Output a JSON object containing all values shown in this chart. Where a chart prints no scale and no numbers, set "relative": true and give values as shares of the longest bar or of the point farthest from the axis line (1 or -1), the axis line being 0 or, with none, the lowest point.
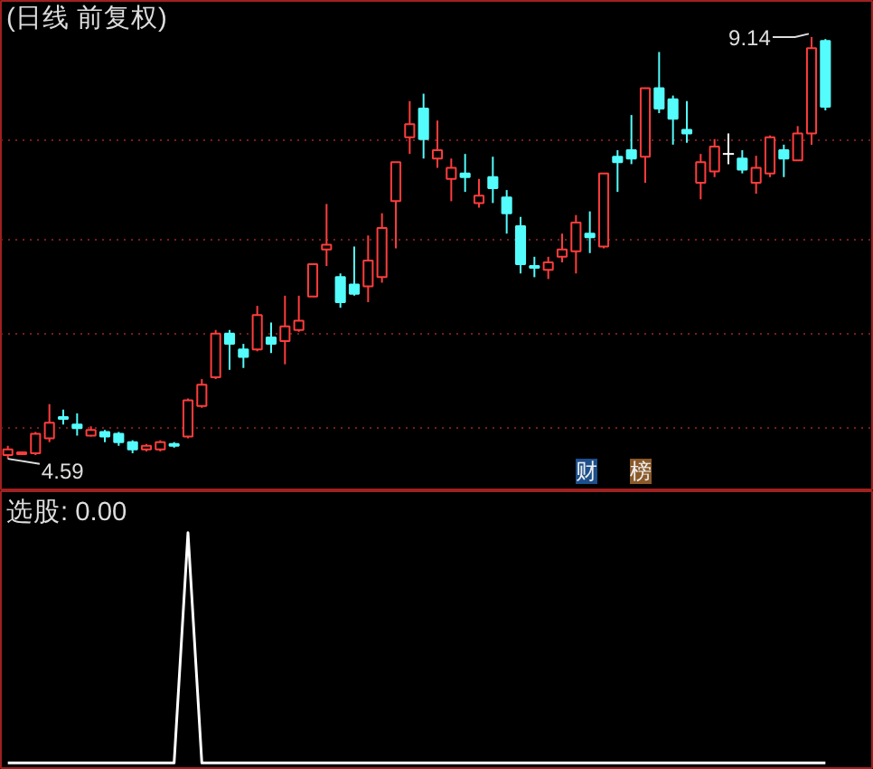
{
  "chart_data": [
    {
      "type": "candlestick",
      "title": "(日线 前复权)",
      "categories": [
        null,
        null,
        null,
        null,
        null,
        null,
        null,
        null,
        null,
        null,
        null,
        null,
        null,
        null,
        null,
        null,
        null,
        null,
        null,
        null,
        null,
        null,
        null,
        null,
        null,
        null,
        null,
        null,
        null,
        null,
        null,
        null,
        null,
        null,
        null,
        null,
        null,
        null,
        null,
        null,
        null,
        null,
        null,
        null,
        null,
        null,
        null,
        null,
        null,
        null,
        null,
        null,
        null,
        null,
        null,
        null,
        null,
        null,
        null,
        null
      ],
      "ohlc": [
        [
          4.63,
          4.73,
          4.59,
          4.69
        ],
        [
          4.64,
          4.67,
          4.63,
          4.66
        ],
        [
          4.65,
          4.88,
          4.63,
          4.86
        ],
        [
          4.81,
          5.18,
          4.77,
          4.98
        ],
        [
          5.04,
          5.12,
          4.96,
          5.02
        ],
        [
          4.96,
          5.08,
          4.84,
          4.92
        ],
        [
          4.84,
          4.94,
          4.83,
          4.9
        ],
        [
          4.88,
          4.9,
          4.77,
          4.83
        ],
        [
          4.86,
          4.88,
          4.73,
          4.77
        ],
        [
          4.77,
          4.79,
          4.65,
          4.69
        ],
        [
          4.69,
          4.75,
          4.67,
          4.73
        ],
        [
          4.69,
          4.79,
          4.67,
          4.77
        ],
        [
          4.75,
          4.77,
          4.71,
          4.73
        ],
        [
          4.83,
          5.24,
          4.81,
          5.22
        ],
        [
          5.16,
          5.45,
          5.14,
          5.39
        ],
        [
          5.47,
          5.98,
          5.45,
          5.94
        ],
        [
          5.94,
          5.98,
          5.55,
          5.83
        ],
        [
          5.77,
          5.83,
          5.57,
          5.69
        ],
        [
          5.77,
          6.24,
          5.75,
          6.14
        ],
        [
          5.9,
          6.06,
          5.73,
          5.83
        ],
        [
          5.86,
          6.35,
          5.61,
          6.02
        ],
        [
          5.98,
          6.35,
          5.96,
          6.08
        ],
        [
          6.34,
          6.69,
          6.34,
          6.69
        ],
        [
          6.85,
          7.34,
          6.67,
          6.9
        ],
        [
          6.55,
          6.59,
          6.22,
          6.28
        ],
        [
          6.47,
          6.88,
          6.35,
          6.37
        ],
        [
          6.45,
          7.0,
          6.28,
          6.73
        ],
        [
          6.55,
          7.24,
          6.49,
          7.08
        ],
        [
          7.37,
          7.79,
          6.86,
          7.79
        ],
        [
          8.06,
          8.45,
          7.88,
          8.2
        ],
        [
          8.37,
          8.53,
          7.83,
          8.04
        ],
        [
          7.83,
          8.24,
          7.73,
          7.92
        ],
        [
          7.61,
          7.83,
          7.37,
          7.73
        ],
        [
          7.67,
          7.88,
          7.47,
          7.63
        ],
        [
          7.35,
          7.61,
          7.3,
          7.43
        ],
        [
          7.63,
          7.85,
          7.35,
          7.51
        ],
        [
          7.41,
          7.49,
          7.02,
          7.24
        ],
        [
          7.1,
          7.2,
          6.59,
          6.69
        ],
        [
          6.67,
          6.77,
          6.55,
          6.65
        ],
        [
          6.63,
          6.77,
          6.53,
          6.71
        ],
        [
          6.77,
          7.02,
          6.71,
          6.85
        ],
        [
          6.83,
          7.22,
          6.59,
          7.14
        ],
        [
          7.02,
          7.26,
          6.81,
          6.98
        ],
        [
          6.88,
          7.67,
          6.86,
          7.67
        ],
        [
          7.85,
          7.92,
          7.47,
          7.79
        ],
        [
          7.92,
          8.3,
          7.77,
          7.83
        ],
        [
          7.85,
          8.59,
          7.57,
          8.59
        ],
        [
          8.59,
          8.98,
          8.32,
          8.37
        ],
        [
          8.47,
          8.51,
          7.98,
          8.26
        ],
        [
          8.14,
          8.45,
          8.0,
          8.1
        ],
        [
          7.57,
          7.88,
          7.39,
          7.79
        ],
        [
          7.69,
          8.04,
          7.63,
          7.96
        ],
        [
          7.88,
          8.1,
          7.77,
          7.88
        ],
        [
          7.83,
          7.92,
          7.67,
          7.71
        ],
        [
          7.57,
          7.86,
          7.45,
          7.73
        ],
        [
          7.67,
          8.08,
          7.63,
          8.06
        ],
        [
          7.92,
          7.98,
          7.63,
          7.83
        ],
        [
          7.81,
          8.18,
          7.81,
          8.1
        ],
        [
          8.1,
          9.14,
          7.98,
          9.02
        ],
        [
          9.1,
          9.12,
          8.35,
          8.39
        ]
      ],
      "colors": [
        "#ff3c3c",
        "#ff3c3c",
        "#ff3c3c",
        "#ff3c3c",
        "#54fcfc",
        "#54fcfc",
        "#ff3c3c",
        "#54fcfc",
        "#54fcfc",
        "#54fcfc",
        "#ff3c3c",
        "#ff3c3c",
        "#54fcfc",
        "#ff3c3c",
        "#ff3c3c",
        "#ff3c3c",
        "#54fcfc",
        "#54fcfc",
        "#ff3c3c",
        "#54fcfc",
        "#ff3c3c",
        "#ff3c3c",
        "#ff3c3c",
        "#ff3c3c",
        "#54fcfc",
        "#54fcfc",
        "#ff3c3c",
        "#ff3c3c",
        "#ff3c3c",
        "#ff3c3c",
        "#54fcfc",
        "#ff3c3c",
        "#ff3c3c",
        "#54fcfc",
        "#ff3c3c",
        "#54fcfc",
        "#54fcfc",
        "#54fcfc",
        "#54fcfc",
        "#ff3c3c",
        "#ff3c3c",
        "#ff3c3c",
        "#54fcfc",
        "#ff3c3c",
        "#54fcfc",
        "#54fcfc",
        "#ff3c3c",
        "#54fcfc",
        "#54fcfc",
        "#54fcfc",
        "#ff3c3c",
        "#ff3c3c",
        "#ffffff",
        "#54fcfc",
        "#ff3c3c",
        "#ff3c3c",
        "#54fcfc",
        "#ff3c3c",
        "#ff3c3c",
        "#54fcfc"
      ],
      "annotations": [
        "9.14",
        "4.59",
        "财",
        "榜"
      ],
      "yticks": [
        {
          "value": 4.92,
          "label": null
        },
        {
          "value": 5.94,
          "label": null
        },
        {
          "value": 6.96,
          "label": null
        },
        {
          "value": 8.02,
          "label": null
        }
      ],
      "grid": true,
      "tick_labels": false
    },
    {
      "type": "line",
      "title": "选股: 0.00",
      "relative": true,
      "categories": [
        null,
        null,
        null,
        null,
        null,
        null,
        null,
        null,
        null,
        null,
        null,
        null,
        null,
        null,
        null,
        null,
        null,
        null,
        null,
        null,
        null,
        null,
        null,
        null,
        null,
        null,
        null,
        null,
        null,
        null,
        null,
        null,
        null,
        null,
        null,
        null,
        null,
        null,
        null,
        null,
        null,
        null,
        null,
        null,
        null,
        null,
        null,
        null,
        null,
        null,
        null,
        null,
        null,
        null,
        null,
        null,
        null,
        null,
        null,
        null
      ],
      "series": [
        {
          "color": "#ffffff",
          "values": [
            0,
            0,
            0,
            0,
            0,
            0,
            0,
            0,
            0,
            0,
            0,
            0,
            0,
            1,
            0,
            0,
            0,
            0,
            0,
            0,
            0,
            0,
            0,
            0,
            0,
            0,
            0,
            0,
            0,
            0,
            0,
            0,
            0,
            0,
            0,
            0,
            0,
            0,
            0,
            0,
            0,
            0,
            0,
            0,
            0,
            0,
            0,
            0,
            0,
            0,
            0,
            0,
            0,
            0,
            0,
            0,
            0,
            0,
            0,
            0
          ]
        }
      ],
      "tick_labels": false
    }
  ]
}
